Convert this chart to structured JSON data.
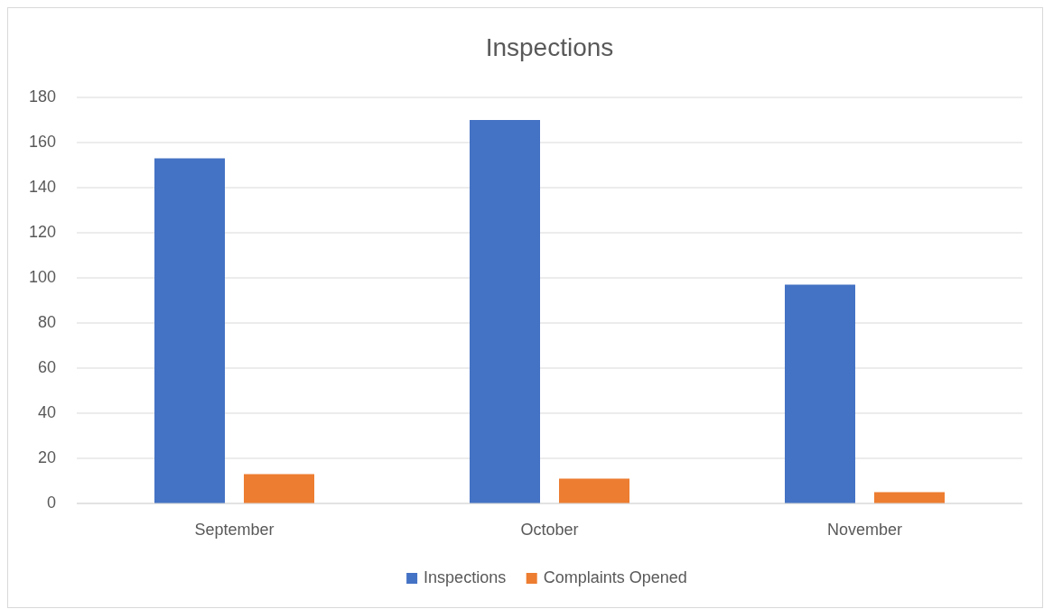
{
  "chart_data": {
    "type": "bar",
    "title": "Inspections",
    "categories": [
      "September",
      "October",
      "November"
    ],
    "series": [
      {
        "name": "Inspections",
        "color": "#4472c4",
        "values": [
          153,
          170,
          97
        ]
      },
      {
        "name": "Complaints Opened",
        "color": "#ed7d31",
        "values": [
          13,
          11,
          5
        ]
      }
    ],
    "ylim": [
      0,
      180
    ],
    "yticks": [
      0,
      20,
      40,
      60,
      80,
      100,
      120,
      140,
      160,
      180
    ],
    "grid": "y",
    "legend": "bottom"
  }
}
